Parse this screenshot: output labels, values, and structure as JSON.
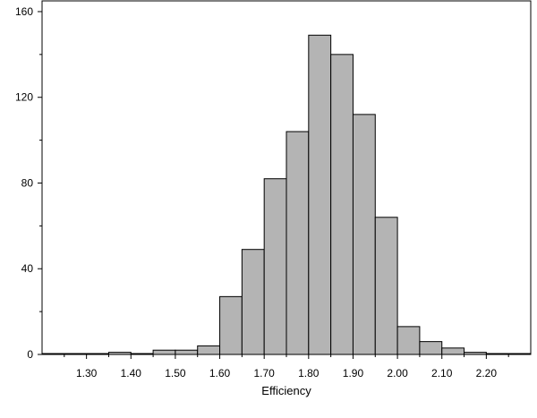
{
  "chart_data": {
    "type": "bar",
    "title": "",
    "xlabel": "Efficiency",
    "ylabel": "",
    "bin_width": 0.05,
    "bins": [
      {
        "x0": 1.2,
        "x1": 1.25,
        "count": 0
      },
      {
        "x0": 1.25,
        "x1": 1.3,
        "count": 0
      },
      {
        "x0": 1.3,
        "x1": 1.35,
        "count": 0
      },
      {
        "x0": 1.35,
        "x1": 1.4,
        "count": 1
      },
      {
        "x0": 1.4,
        "x1": 1.45,
        "count": 0
      },
      {
        "x0": 1.45,
        "x1": 1.5,
        "count": 2
      },
      {
        "x0": 1.5,
        "x1": 1.55,
        "count": 2
      },
      {
        "x0": 1.55,
        "x1": 1.6,
        "count": 4
      },
      {
        "x0": 1.6,
        "x1": 1.65,
        "count": 27
      },
      {
        "x0": 1.65,
        "x1": 1.7,
        "count": 49
      },
      {
        "x0": 1.7,
        "x1": 1.75,
        "count": 82
      },
      {
        "x0": 1.75,
        "x1": 1.8,
        "count": 104
      },
      {
        "x0": 1.8,
        "x1": 1.85,
        "count": 149
      },
      {
        "x0": 1.85,
        "x1": 1.9,
        "count": 140
      },
      {
        "x0": 1.9,
        "x1": 1.95,
        "count": 112
      },
      {
        "x0": 1.95,
        "x1": 2.0,
        "count": 64
      },
      {
        "x0": 2.0,
        "x1": 2.05,
        "count": 13
      },
      {
        "x0": 2.05,
        "x1": 2.1,
        "count": 6
      },
      {
        "x0": 2.1,
        "x1": 2.15,
        "count": 3
      },
      {
        "x0": 2.15,
        "x1": 2.2,
        "count": 1
      },
      {
        "x0": 2.2,
        "x1": 2.25,
        "count": 0
      },
      {
        "x0": 2.25,
        "x1": 2.3,
        "count": 0
      }
    ],
    "xlim": [
      1.2,
      2.3
    ],
    "ylim": [
      0,
      165
    ],
    "x_ticks": [
      {
        "value": 1.3,
        "label": "1.30"
      },
      {
        "value": 1.4,
        "label": "1.40"
      },
      {
        "value": 1.5,
        "label": "1.50"
      },
      {
        "value": 1.6,
        "label": "1.60"
      },
      {
        "value": 1.7,
        "label": "1.70"
      },
      {
        "value": 1.8,
        "label": "1.80"
      },
      {
        "value": 1.9,
        "label": "1.90"
      },
      {
        "value": 2.0,
        "label": "2.00"
      },
      {
        "value": 2.1,
        "label": "2.10"
      },
      {
        "value": 2.2,
        "label": "2.20"
      }
    ],
    "y_ticks": [
      {
        "value": 0,
        "label": "0"
      },
      {
        "value": 40,
        "label": "40"
      },
      {
        "value": 80,
        "label": "80"
      },
      {
        "value": 120,
        "label": "120"
      },
      {
        "value": 160,
        "label": "160"
      }
    ],
    "y_minor_ticks": [
      20,
      60,
      100,
      140
    ],
    "grid": false,
    "legend": "none",
    "colors": {
      "bar_fill": "#b4b4b4",
      "bar_stroke": "#000000",
      "axis": "#000000",
      "background": "#ffffff"
    }
  }
}
